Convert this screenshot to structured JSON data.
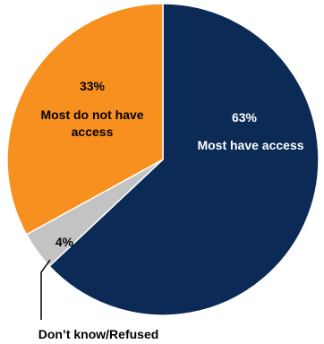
{
  "chart_data": {
    "type": "pie",
    "title": "",
    "slices": [
      {
        "label": "Most have access",
        "value": 63,
        "value_label": "63%",
        "color": "#0b2a55"
      },
      {
        "label": "Don’t know/Refused",
        "value": 4,
        "value_label": "4%",
        "color": "#c3c3c3"
      },
      {
        "label": "Most do not have access",
        "value": 33,
        "value_label": "33%",
        "color": "#f7901e"
      }
    ],
    "legend": "none"
  },
  "labels": {
    "slice_0_pct": "63%",
    "slice_0_name": "Most have access",
    "slice_1_pct": "4%",
    "slice_1_name": "Don’t know/Refused",
    "slice_2_pct": "33%",
    "slice_2_name_line1": "Most do not have",
    "slice_2_name_line2": "access"
  }
}
